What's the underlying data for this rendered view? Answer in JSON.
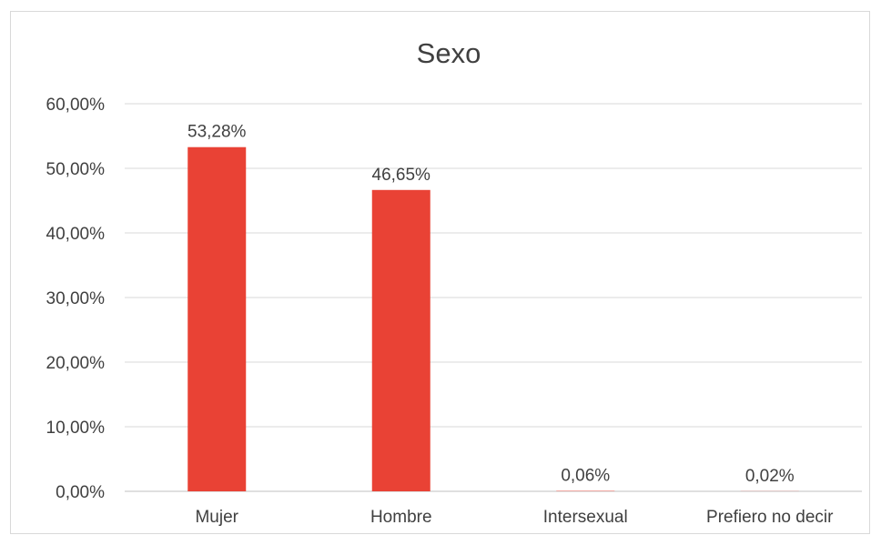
{
  "chart_data": {
    "type": "bar",
    "title": "Sexo",
    "xlabel": "",
    "ylabel": "",
    "categories": [
      "Mujer",
      "Hombre",
      "Intersexual",
      "Prefiero no decir"
    ],
    "values": [
      53.28,
      46.65,
      0.06,
      0.02
    ],
    "value_labels": [
      "53,28%",
      "46,65%",
      "0,06%",
      "0,02%"
    ],
    "ylim": [
      0,
      60
    ],
    "yticks": [
      0,
      10,
      20,
      30,
      40,
      50,
      60
    ],
    "ytick_labels": [
      "0,00%",
      "10,00%",
      "20,00%",
      "30,00%",
      "40,00%",
      "50,00%",
      "60,00%"
    ],
    "grid": true,
    "legend": "none",
    "bar_color": "#e94235"
  }
}
